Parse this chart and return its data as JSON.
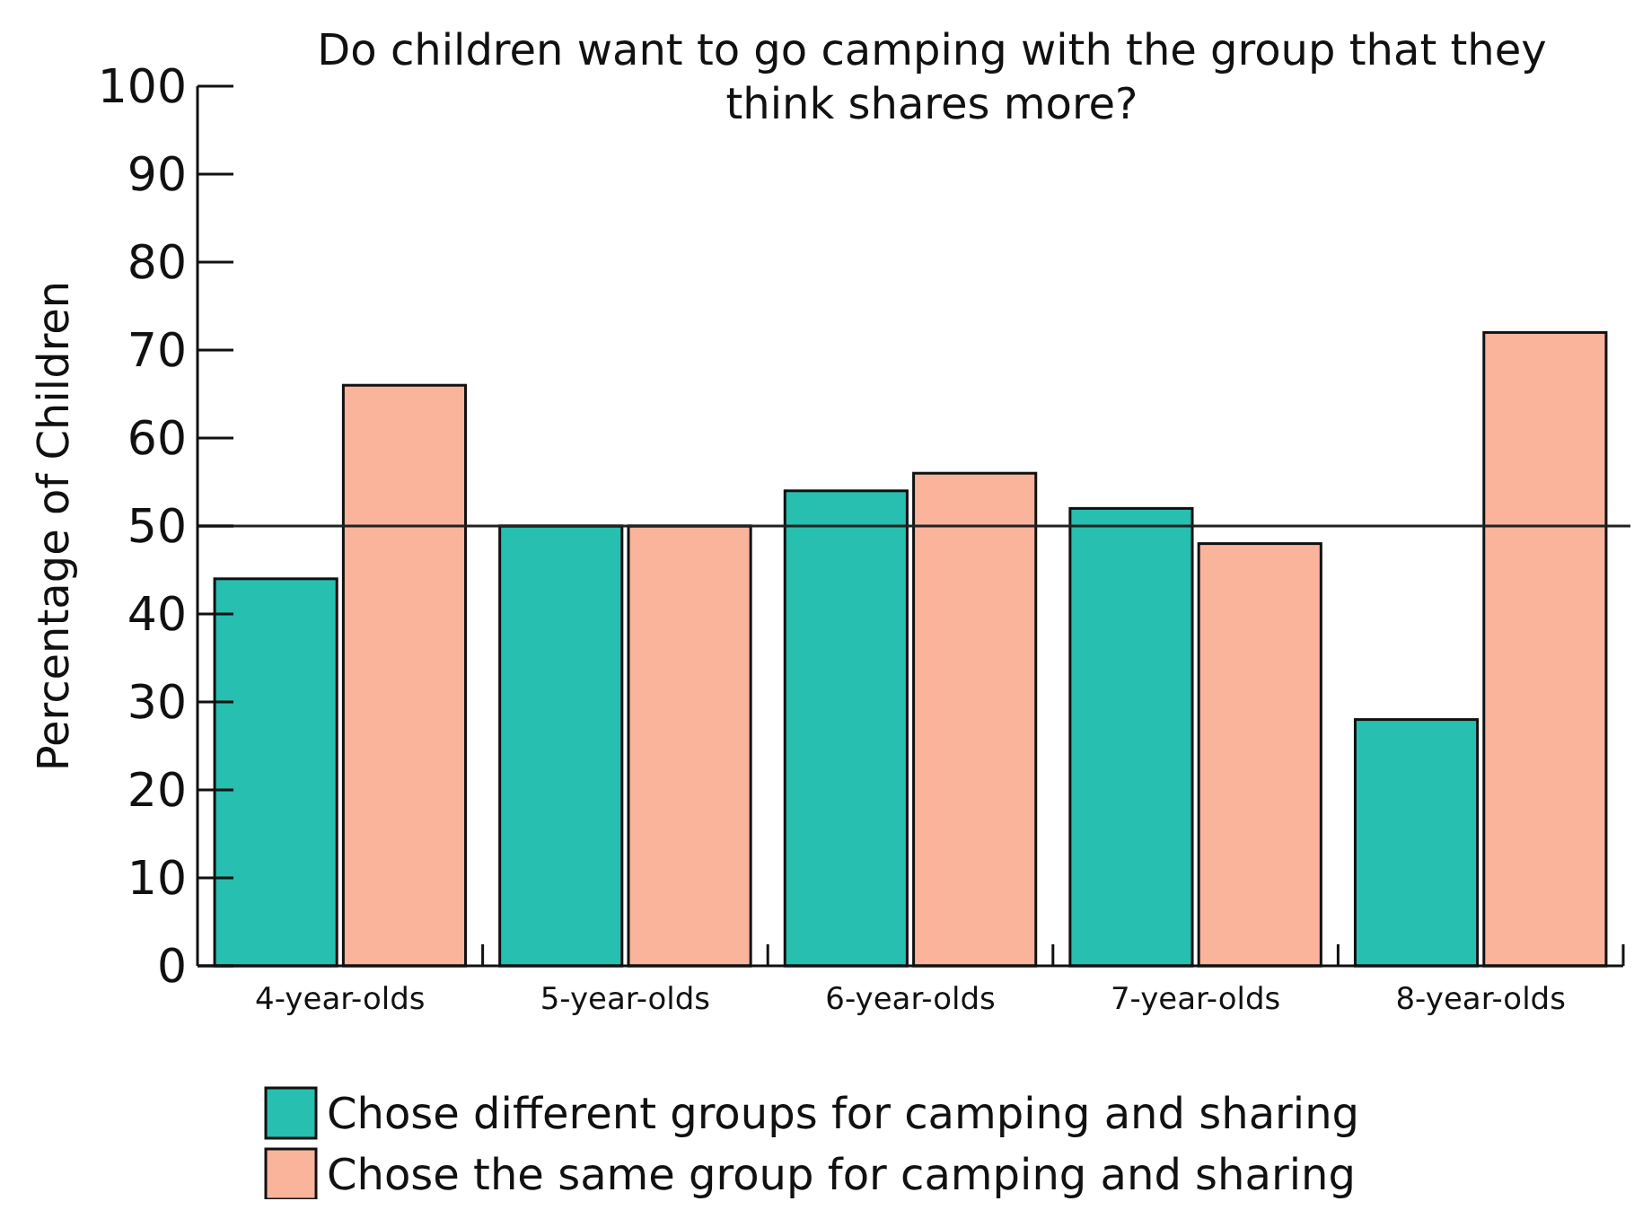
{
  "chart_data": {
    "type": "bar",
    "title": "Do children want to go camping with the group that they think shares more?",
    "ylabel": "Percentage of Children",
    "categories": [
      "4-year-olds",
      "5-year-olds",
      "6-year-olds",
      "7-year-olds",
      "8-year-olds"
    ],
    "series": [
      {
        "name": "Chose different groups for camping and sharing",
        "color": "#26bfb0",
        "values": [
          44,
          50,
          54,
          52,
          28
        ]
      },
      {
        "name": "Chose the same group for camping and sharing",
        "color": "#f9b49b",
        "values": [
          66,
          50,
          56,
          48,
          72
        ]
      }
    ],
    "ylim": [
      0,
      100
    ],
    "yticks": [
      0,
      10,
      20,
      30,
      40,
      50,
      60,
      70,
      80,
      90,
      100
    ],
    "ref_lines": [
      {
        "axis": "y",
        "value": 50,
        "color": "#222222"
      }
    ],
    "legend": "bottom"
  }
}
